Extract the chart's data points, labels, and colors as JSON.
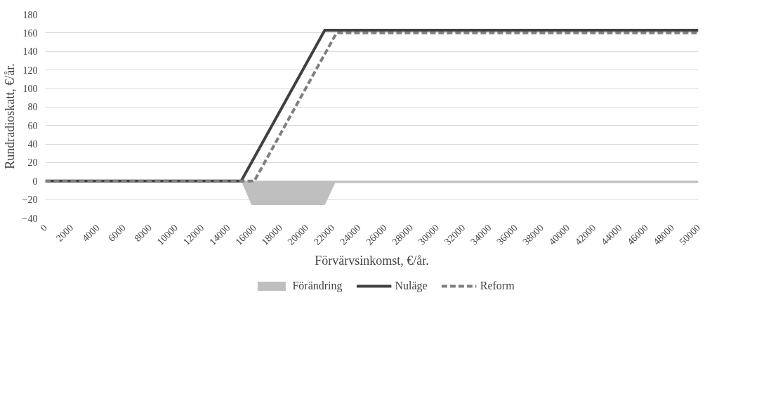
{
  "chart_data": {
    "type": "line",
    "xlabel": "Förvärvsinkomst, €/år.",
    "ylabel": "Rundradioskatt, €/år.",
    "xlim": [
      0,
      50000
    ],
    "xticks": [
      0,
      2000,
      4000,
      6000,
      8000,
      10000,
      12000,
      14000,
      16000,
      18000,
      20000,
      22000,
      24000,
      26000,
      28000,
      30000,
      32000,
      34000,
      36000,
      38000,
      40000,
      42000,
      44000,
      46000,
      48000,
      50000
    ],
    "ylim": [
      -40,
      180
    ],
    "yticks": [
      -40,
      -20,
      0,
      20,
      40,
      60,
      80,
      100,
      120,
      140,
      160,
      180
    ],
    "grid": "y",
    "legend": "bottom",
    "series": [
      {
        "name": "Förändring",
        "type": "area",
        "color": "#bfbfbf",
        "x": [
          0,
          15000,
          15800,
          21400,
          22200,
          50000
        ],
        "values": [
          0,
          0,
          -26,
          -26,
          -2,
          -2
        ]
      },
      {
        "name": "Nuläge",
        "color": "#404040",
        "line_style": "solid",
        "x": [
          0,
          15000,
          21400,
          50000
        ],
        "values": [
          0,
          0,
          163,
          163
        ]
      },
      {
        "name": "Reform",
        "color": "#7f7f7f",
        "line_style": "dashed",
        "x": [
          0,
          16000,
          22300,
          50000
        ],
        "values": [
          0,
          0,
          160,
          160
        ]
      }
    ]
  }
}
